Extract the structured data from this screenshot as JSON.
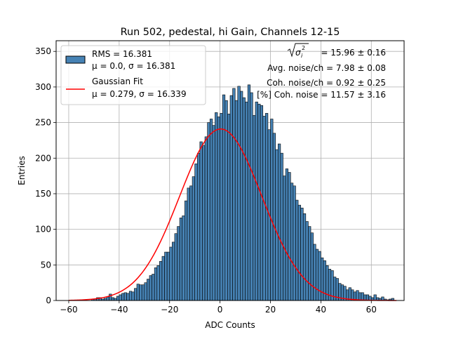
{
  "chart_data": {
    "type": "histogram",
    "title": "Run 502, pedestal, hi Gain, Channels 12-15",
    "xlabel": "ADC Counts",
    "ylabel": "Entries",
    "xlim": [
      -65,
      73
    ],
    "ylim": [
      0,
      365
    ],
    "xticks": [
      -60,
      -40,
      -20,
      0,
      20,
      40,
      60
    ],
    "yticks": [
      0,
      50,
      100,
      150,
      200,
      250,
      300,
      350
    ],
    "grid": true,
    "bin_start": -59,
    "bin_width": 1,
    "counts": [
      0,
      0,
      0,
      0,
      0,
      0,
      0,
      0,
      2,
      2,
      4,
      4,
      2,
      3,
      5,
      9,
      4,
      3,
      6,
      8,
      10,
      11,
      10,
      13,
      12,
      17,
      23,
      22,
      22,
      25,
      30,
      35,
      37,
      46,
      49,
      55,
      62,
      68,
      68,
      75,
      82,
      94,
      104,
      116,
      119,
      140,
      158,
      161,
      174,
      192,
      207,
      223,
      218,
      230,
      250,
      255,
      246,
      264,
      258,
      263,
      289,
      281,
      262,
      288,
      298,
      281,
      301,
      294,
      285,
      279,
      303,
      292,
      260,
      279,
      276,
      274,
      259,
      263,
      240,
      255,
      235,
      212,
      220,
      207,
      175,
      185,
      180,
      165,
      161,
      141,
      134,
      130,
      122,
      111,
      104,
      95,
      79,
      72,
      69,
      60,
      56,
      49,
      44,
      42,
      33,
      31,
      24,
      22,
      20,
      15,
      18,
      15,
      12,
      14,
      11,
      11,
      8,
      8,
      6,
      4,
      8,
      4,
      3,
      5,
      2,
      1,
      2,
      3
    ],
    "series": [
      {
        "name": "RMS = 16.381",
        "name_line2": "μ = 0.0, σ = 16.381",
        "kind": "histogram",
        "color": "#4682b4",
        "edgecolor": "#000000"
      },
      {
        "name": "Gaussian Fit",
        "name_line2": "μ = 0.279, σ = 16.339",
        "kind": "line",
        "color": "#ff0000",
        "mu": 0.279,
        "sigma": 16.339,
        "amplitude": 241
      }
    ],
    "legend_position": "top-left",
    "annotations": [
      "= 15.96 ± 0.16",
      "Avg. noise/ch = 7.98 ± 0.08",
      "Coh. noise/ch = 0.92 ± 0.25",
      "[%] Coh. noise = 11.57 ± 3.16"
    ]
  }
}
